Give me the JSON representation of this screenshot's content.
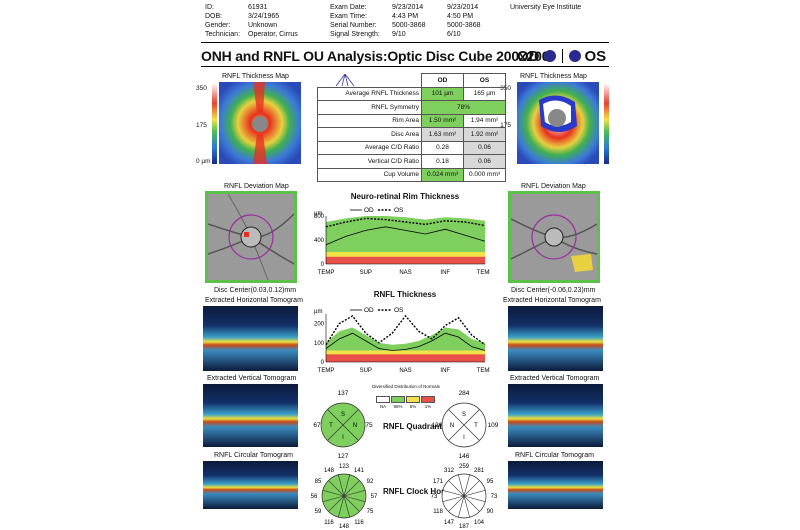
{
  "header": {
    "labels": [
      "ID:",
      "DOB:",
      "Gender:",
      "Technician:"
    ],
    "values": [
      "61931",
      "3/24/1965",
      "Unknown",
      "Operator, Cirrus"
    ],
    "exam_labels": [
      "Exam Date:",
      "Exam Time:",
      "Serial Number:",
      "Signal Strength:"
    ],
    "od_values": [
      "9/23/2014",
      "4:43 PM",
      "5000-3868",
      "9/10"
    ],
    "os_values": [
      "9/23/2014",
      "4:50 PM",
      "5000-3868",
      "6/10"
    ],
    "institute": "University Eye Institute"
  },
  "title": "ONH and RNFL OU Analysis:Optic Disc Cube 200x200",
  "eyes": {
    "od": "OD",
    "os": "OS"
  },
  "thickness_map": {
    "label": "RNFL Thickness Map",
    "scale": [
      "350",
      "175",
      "0 µm"
    ]
  },
  "metrics": {
    "headers": [
      "OD",
      "OS"
    ],
    "rows": [
      {
        "label": "Average RNFL Thickness",
        "od": "101 µm",
        "os": "165 µm",
        "od_status": "normal",
        "os_status": "none"
      },
      {
        "label": "RNFL Symmetry",
        "merged": "78%",
        "status": "normal"
      },
      {
        "label": "Rim Area",
        "od": "1.50 mm²",
        "os": "1.94 mm²",
        "od_status": "normal",
        "os_status": "none"
      },
      {
        "label": "Disc Area",
        "od": "1.63 mm²",
        "os": "1.92 mm²",
        "od_status": "none",
        "os_status": "none"
      },
      {
        "label": "Average C/D Ratio",
        "od": "0.28",
        "os": "0.06",
        "od_status": "none",
        "os_status": "none"
      },
      {
        "label": "Vertical C/D Ratio",
        "od": "0.18",
        "os": "0.06",
        "od_status": "none",
        "os_status": "none"
      },
      {
        "label": "Cup Volume",
        "od": "0.024 mm³",
        "os": "0.000 mm³",
        "od_status": "normal",
        "os_status": "none"
      }
    ]
  },
  "deviation_map": {
    "label": "RNFL Deviation Map",
    "od_center": "Disc Center(0.03,0.12)mm",
    "os_center": "Disc Center(-0.06,0.23)mm"
  },
  "tomograms": {
    "horizontal": "Extracted Horizontal Tomogram",
    "vertical": "Extracted Vertical Tomogram",
    "circular": "RNFL Circular Tomogram"
  },
  "legend": {
    "od": "OD",
    "os": "OS"
  },
  "chart_data": [
    {
      "type": "line",
      "title": "Neuro-retinal Rim Thickness",
      "ylabel": "µm",
      "yticks": [
        "800",
        "400",
        "0"
      ],
      "ylim": [
        0,
        800
      ],
      "categories": [
        "TEMP",
        "SUP",
        "NAS",
        "INF",
        "TEMP"
      ],
      "x": [
        0,
        45,
        90,
        135,
        180,
        225,
        270,
        315,
        360
      ],
      "series": [
        {
          "name": "OD",
          "values": [
            320,
            460,
            560,
            620,
            560,
            500,
            580,
            480,
            380
          ]
        },
        {
          "name": "OS",
          "values": [
            620,
            700,
            760,
            740,
            700,
            660,
            720,
            700,
            640
          ]
        }
      ],
      "normative_bands": {
        "red": 120,
        "yellow": 200,
        "green": [
          700,
          760,
          800,
          800,
          780,
          740,
          780,
          760,
          720
        ]
      }
    },
    {
      "type": "line",
      "title": "RNFL Thickness",
      "ylabel": "µm",
      "yticks": [
        "200",
        "100",
        "0"
      ],
      "ylim": [
        0,
        250
      ],
      "categories": [
        "TEMP",
        "SUP",
        "NAS",
        "INF",
        "TEMP"
      ],
      "x": [
        0,
        30,
        60,
        90,
        120,
        150,
        180,
        210,
        240,
        270,
        300,
        330,
        360
      ],
      "series": [
        {
          "name": "OD",
          "values": [
            70,
            120,
            150,
            110,
            70,
            60,
            65,
            80,
            110,
            150,
            130,
            80,
            60
          ]
        },
        {
          "name": "OS",
          "values": [
            90,
            200,
            240,
            150,
            100,
            150,
            240,
            160,
            120,
            190,
            230,
            140,
            90
          ]
        }
      ],
      "normative_bands": {
        "red": 40,
        "yellow": 60,
        "green": [
          100,
          160,
          180,
          140,
          100,
          90,
          95,
          110,
          140,
          180,
          170,
          120,
          100
        ]
      }
    }
  ],
  "normals_legend": {
    "title": "Diversified Distribution of Normals",
    "items": [
      "NA",
      "95%",
      "5%",
      "1%"
    ],
    "colors": [
      "#ffffff",
      "#7fcf5f",
      "#f2e24a",
      "#e8504a"
    ]
  },
  "quadrants": {
    "label": "RNFL Quadrants",
    "od": {
      "top": "137",
      "left": "67",
      "right": "75",
      "bottom": "127",
      "letters": [
        "S",
        "T",
        "N",
        "I"
      ]
    },
    "os": {
      "top": "284",
      "left": "120",
      "right": "109",
      "bottom": "146",
      "letters": [
        "S",
        "N",
        "T",
        "I"
      ]
    }
  },
  "clock_hours": {
    "label": "RNFL Clock Hours",
    "od": [
      "123",
      "141",
      "92",
      "57",
      "75",
      "116",
      "148",
      "116",
      "59",
      "56",
      "85",
      "148"
    ],
    "os": [
      "259",
      "281",
      "95",
      "73",
      "90",
      "104",
      "187",
      "147",
      "118",
      "73",
      "171",
      "312"
    ]
  }
}
